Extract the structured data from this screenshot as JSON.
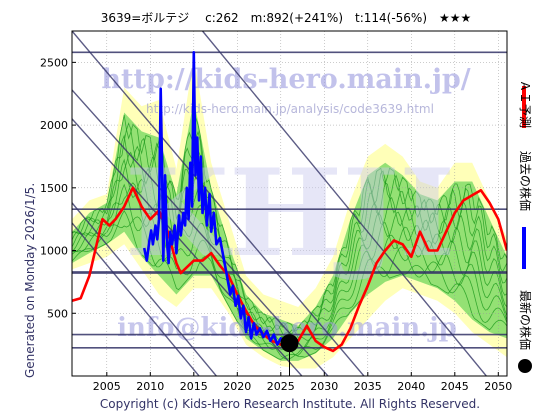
{
  "header": {
    "ticker_line": "3639=ボルテジ　 c:262　m:892(+241%)　t:114(-56%)　★★★"
  },
  "side_text": "Generated on Monday 2026/1/5.",
  "footer": {
    "copyright": "Copyright (c) Kids-Hero Research Institute. All Rights Reserved."
  },
  "watermarks": {
    "url_main": "http://kids-hero.main.jp/",
    "url_analysis": "http://kids-hero.main.jp/analysis/code3639.html",
    "email": "info@kids-hero.main.jp",
    "logo": "KHJI"
  },
  "legend": {
    "ai_forecast": "ＡＩ予測",
    "past_price": "過去の株価",
    "latest_price": "最新の株価"
  },
  "colors": {
    "ai_forecast": "#ff0000",
    "past_price": "#0000ff",
    "latest_marker": "#000000",
    "band_green": "#3cc83c",
    "band_yellow": "#ffffa0",
    "trend_line": "#333366",
    "plot_bg": "#ffffff"
  },
  "chart_data": {
    "type": "line",
    "x_label": "",
    "y_label": "",
    "xlim": [
      2001,
      2051
    ],
    "ylim": [
      0,
      2750
    ],
    "x_ticks": [
      2005,
      2010,
      2015,
      2020,
      2025,
      2030,
      2035,
      2040,
      2045,
      2050
    ],
    "y_ticks": [
      500,
      1000,
      1500,
      2000,
      2500
    ],
    "grid": true,
    "legend_position": "right, vertical",
    "latest": {
      "year": 2026.0,
      "price": 262
    },
    "horizontal_levels": [
      2580,
      1330,
      830,
      820,
      330,
      225
    ],
    "trend_lines": [
      [
        [
          2001,
          2750
        ],
        [
          2037,
          -200
        ]
      ],
      [
        [
          2001,
          2280
        ],
        [
          2033,
          -200
        ]
      ],
      [
        [
          2001,
          2050
        ],
        [
          2030,
          -200
        ]
      ],
      [
        [
          2001,
          1380
        ],
        [
          2020,
          -200
        ]
      ],
      [
        [
          2001,
          1220
        ],
        [
          2018,
          -200
        ]
      ],
      [
        [
          2016,
          2750
        ],
        [
          2051,
          -200
        ]
      ]
    ],
    "series": [
      {
        "name": "過去の株価",
        "color": "#0000ff",
        "points": [
          [
            2009.3,
            1020
          ],
          [
            2009.6,
            920
          ],
          [
            2009.9,
            1080
          ],
          [
            2010.1,
            1160
          ],
          [
            2010.3,
            1050
          ],
          [
            2010.6,
            1200
          ],
          [
            2010.8,
            1090
          ],
          [
            2011.0,
            1250
          ],
          [
            2011.2,
            2290
          ],
          [
            2011.35,
            1700
          ],
          [
            2011.5,
            920
          ],
          [
            2011.7,
            1600
          ],
          [
            2011.9,
            1100
          ],
          [
            2012.1,
            900
          ],
          [
            2012.3,
            1150
          ],
          [
            2012.5,
            1050
          ],
          [
            2012.8,
            1200
          ],
          [
            2013.0,
            980
          ],
          [
            2013.3,
            1280
          ],
          [
            2013.5,
            1120
          ],
          [
            2013.8,
            1300
          ],
          [
            2014.0,
            1200
          ],
          [
            2014.2,
            1500
          ],
          [
            2014.4,
            1250
          ],
          [
            2014.6,
            1700
          ],
          [
            2014.8,
            1350
          ],
          [
            2015.0,
            2580
          ],
          [
            2015.2,
            1600
          ],
          [
            2015.4,
            1900
          ],
          [
            2015.6,
            1400
          ],
          [
            2015.8,
            1750
          ],
          [
            2016.0,
            1300
          ],
          [
            2016.3,
            1500
          ],
          [
            2016.5,
            1200
          ],
          [
            2016.8,
            1450
          ],
          [
            2017.0,
            1150
          ],
          [
            2017.3,
            1300
          ],
          [
            2017.6,
            1050
          ],
          [
            2018.0,
            1100
          ],
          [
            2018.4,
            950
          ],
          [
            2018.8,
            800
          ],
          [
            2019.2,
            650
          ],
          [
            2019.5,
            720
          ],
          [
            2019.8,
            560
          ],
          [
            2020.1,
            640
          ],
          [
            2020.4,
            460
          ],
          [
            2020.7,
            560
          ],
          [
            2021.0,
            350
          ],
          [
            2021.3,
            470
          ],
          [
            2021.6,
            300
          ],
          [
            2021.9,
            420
          ],
          [
            2022.2,
            330
          ],
          [
            2022.6,
            380
          ],
          [
            2023.0,
            310
          ],
          [
            2023.4,
            360
          ],
          [
            2023.8,
            280
          ],
          [
            2024.2,
            330
          ],
          [
            2024.6,
            250
          ],
          [
            2025.0,
            300
          ],
          [
            2025.4,
            270
          ]
        ]
      },
      {
        "name": "ＡＩ予測",
        "color": "#ff0000",
        "points": [
          [
            2001,
            600
          ],
          [
            2002,
            620
          ],
          [
            2003,
            800
          ],
          [
            2004,
            1100
          ],
          [
            2004.5,
            1250
          ],
          [
            2005.3,
            1200
          ],
          [
            2006,
            1250
          ],
          [
            2007,
            1350
          ],
          [
            2008,
            1500
          ],
          [
            2009,
            1350
          ],
          [
            2010,
            1250
          ],
          [
            2011,
            1320
          ],
          [
            2012,
            1150
          ],
          [
            2013,
            900
          ],
          [
            2013.5,
            820
          ],
          [
            2015,
            920
          ],
          [
            2016,
            920
          ],
          [
            2017,
            980
          ],
          [
            2018,
            880
          ],
          [
            2019,
            800
          ],
          [
            2020,
            650
          ],
          [
            2021,
            520
          ],
          [
            2022,
            400
          ],
          [
            2023,
            330
          ],
          [
            2024,
            280
          ],
          [
            2025,
            250
          ],
          [
            2026,
            230
          ],
          [
            2027,
            280
          ],
          [
            2028,
            400
          ],
          [
            2029,
            280
          ],
          [
            2030,
            230
          ],
          [
            2031,
            200
          ],
          [
            2032,
            250
          ],
          [
            2033,
            380
          ],
          [
            2034,
            560
          ],
          [
            2035,
            720
          ],
          [
            2036,
            900
          ],
          [
            2037,
            1000
          ],
          [
            2038,
            1080
          ],
          [
            2039,
            1050
          ],
          [
            2040,
            950
          ],
          [
            2041,
            1150
          ],
          [
            2042,
            1000
          ],
          [
            2043,
            1000
          ],
          [
            2044,
            1150
          ],
          [
            2045,
            1300
          ],
          [
            2046,
            1400
          ],
          [
            2047,
            1440
          ],
          [
            2048,
            1480
          ],
          [
            2049,
            1380
          ],
          [
            2050,
            1250
          ],
          [
            2051,
            1000
          ]
        ]
      }
    ],
    "forecast_band": {
      "x": [
        2001,
        2003,
        2005,
        2007,
        2009,
        2011,
        2013,
        2015,
        2017,
        2019,
        2021,
        2023,
        2025,
        2027,
        2029,
        2031,
        2033,
        2035,
        2037,
        2039,
        2041,
        2043,
        2045,
        2047,
        2049,
        2051
      ],
      "outer_low": [
        850,
        900,
        950,
        1050,
        850,
        650,
        550,
        700,
        700,
        500,
        250,
        150,
        80,
        60,
        60,
        150,
        300,
        450,
        600,
        700,
        650,
        600,
        500,
        350,
        250,
        150
      ],
      "outer_high": [
        1250,
        1400,
        1450,
        2300,
        2150,
        2200,
        1650,
        2550,
        1700,
        1250,
        800,
        650,
        600,
        550,
        700,
        950,
        1400,
        1750,
        1850,
        1750,
        1550,
        1500,
        1700,
        1700,
        1400,
        1100
      ],
      "inner_low": [
        900,
        980,
        1050,
        1150,
        950,
        800,
        650,
        800,
        800,
        550,
        300,
        200,
        120,
        120,
        180,
        300,
        500,
        650,
        750,
        800,
        750,
        700,
        600,
        450,
        350,
        300
      ],
      "inner_high": [
        1150,
        1300,
        1380,
        2100,
        1950,
        1900,
        1450,
        2200,
        1500,
        1050,
        650,
        500,
        450,
        400,
        550,
        800,
        1250,
        1600,
        1700,
        1600,
        1450,
        1400,
        1550,
        1550,
        1250,
        950
      ]
    }
  }
}
